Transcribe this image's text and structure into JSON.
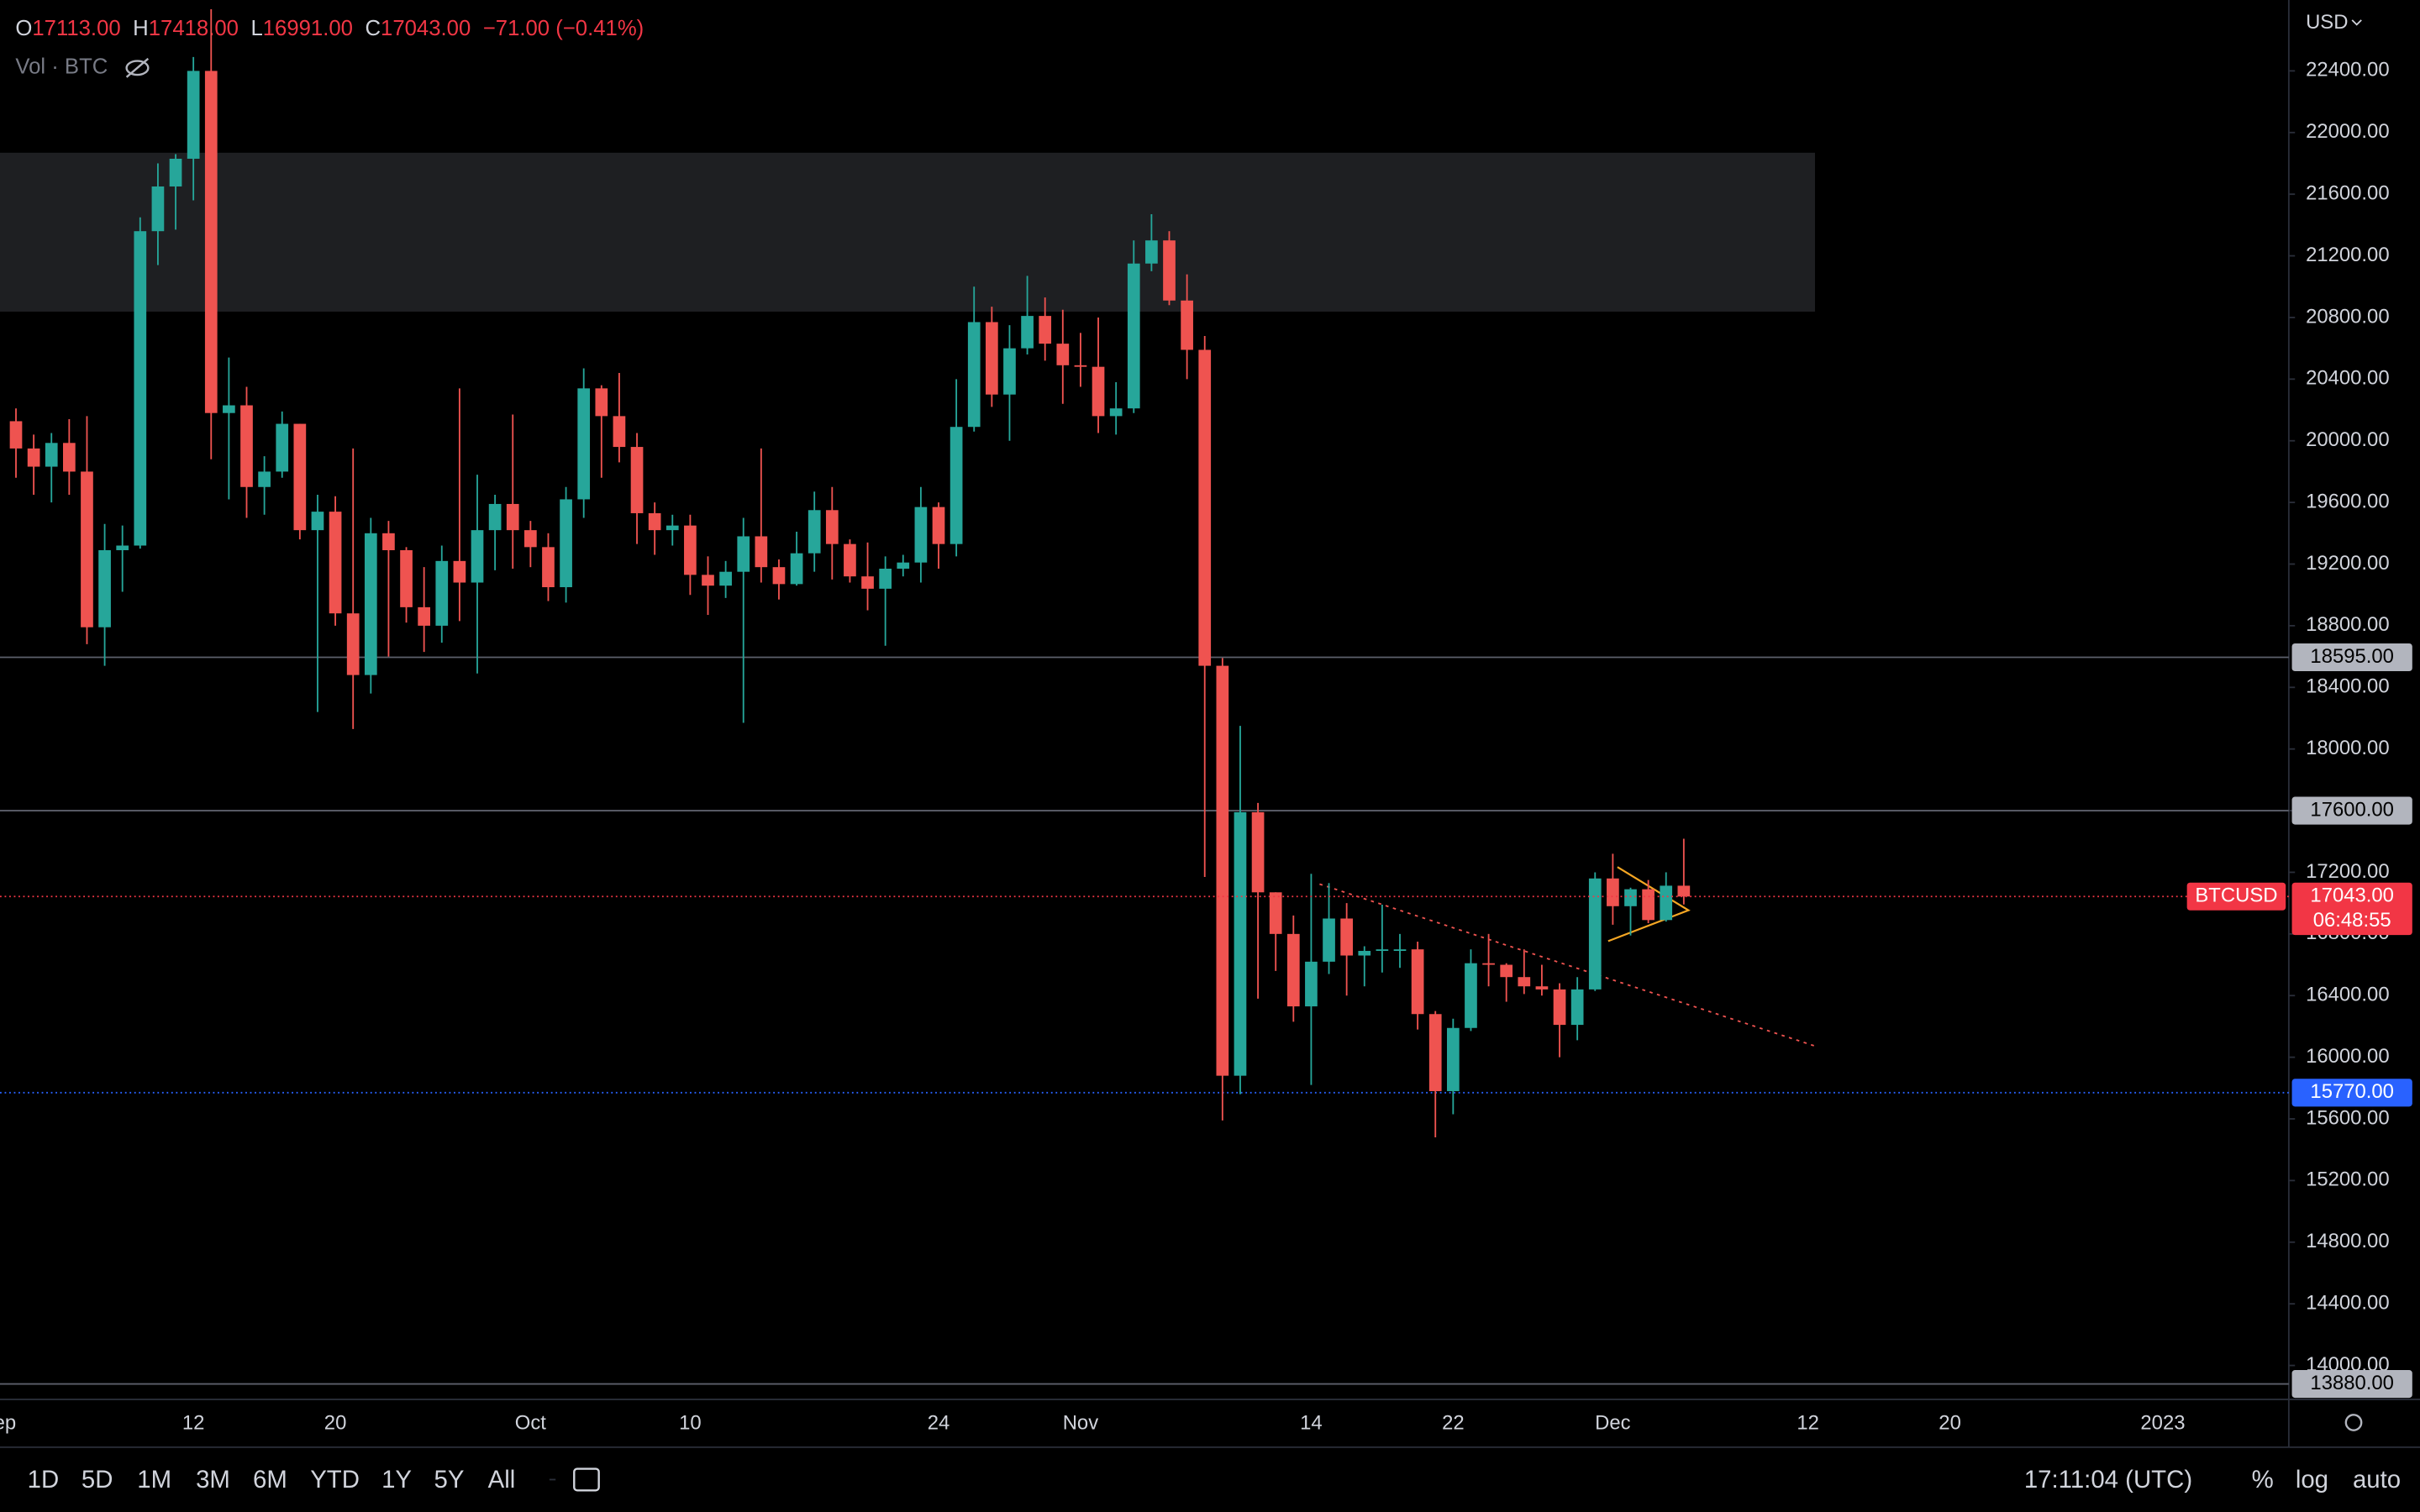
{
  "header": {
    "open_key": "O",
    "open": "17113.00",
    "high_key": "H",
    "high": "17418.00",
    "low_key": "L",
    "low": "16991.00",
    "close_key": "C",
    "close": "17043.00",
    "change": "−71.00 (−0.41%)",
    "volume": "Vol · BTC",
    "currency": "USD"
  },
  "toolbar": {
    "ranges": [
      "1D",
      "5D",
      "1M",
      "3M",
      "6M",
      "YTD",
      "1Y",
      "5Y",
      "All"
    ],
    "clock": "17:11:04 (UTC)",
    "percent": "%",
    "log": "log",
    "auto": "auto"
  },
  "chart_data": {
    "type": "candlestick",
    "up_color": "#26a69a",
    "down_color": "#ef5350",
    "log_scale": false,
    "grid": false,
    "open": [
      20127,
      19950,
      19832,
      19986,
      19800,
      18790,
      19290,
      19320,
      21360,
      21650,
      21830,
      22400,
      20180,
      20230,
      19700,
      19800,
      20110,
      19420,
      19540,
      18880,
      18480,
      19400,
      19290,
      18920,
      18800,
      19220,
      19080,
      19420,
      19590,
      19420,
      19310,
      19050,
      19620,
      20340,
      20160,
      19960,
      19530,
      19420,
      19450,
      19130,
      19060,
      19150,
      19380,
      19180,
      19070,
      19270,
      19550,
      19330,
      19120,
      19040,
      19170,
      19210,
      19570,
      19330,
      20090,
      20770,
      20300,
      20600,
      20810,
      20630,
      20490,
      20480,
      20160,
      20210,
      21150,
      21300,
      20910,
      20590,
      18540,
      15880,
      17590,
      17070,
      16800,
      16330,
      16620,
      16900,
      16660,
      16690,
      16700,
      16700,
      16280,
      15780,
      16190,
      16610,
      16600,
      16520,
      16460,
      16440,
      16210,
      16440,
      17160,
      16980,
      17090,
      16890,
      17113
    ],
    "high": [
      20210,
      20040,
      20050,
      20140,
      20160,
      19460,
      19450,
      21450,
      21800,
      21860,
      22490,
      22800,
      20540,
      20350,
      19900,
      20190,
      20110,
      19650,
      19640,
      19950,
      19500,
      19480,
      19310,
      19180,
      19320,
      20340,
      19780,
      19650,
      20170,
      19480,
      19400,
      19700,
      20470,
      20360,
      20440,
      20050,
      19600,
      19520,
      19520,
      19250,
      19220,
      19500,
      19950,
      19230,
      19410,
      19670,
      19700,
      19360,
      19340,
      19250,
      19260,
      19700,
      19600,
      20400,
      21000,
      20870,
      20750,
      21070,
      20930,
      20850,
      20700,
      20800,
      20380,
      21300,
      21470,
      21360,
      21080,
      20680,
      18590,
      18150,
      17650,
      17070,
      16920,
      17190,
      17130,
      17000,
      16720,
      16990,
      16800,
      16750,
      16300,
      16250,
      16700,
      16800,
      16610,
      16700,
      16600,
      16480,
      16520,
      17200,
      17320,
      17100,
      17150,
      17200,
      17418
    ],
    "low": [
      19760,
      19650,
      19600,
      19650,
      18680,
      18540,
      19020,
      19300,
      21140,
      21370,
      21560,
      19880,
      19620,
      19500,
      19520,
      19760,
      19360,
      18240,
      18800,
      18130,
      18360,
      18600,
      18820,
      18630,
      18690,
      18830,
      18490,
      19160,
      19170,
      19180,
      18960,
      18950,
      19500,
      19760,
      19860,
      19330,
      19260,
      19320,
      19000,
      18870,
      18980,
      18170,
      19080,
      18970,
      19060,
      19150,
      19100,
      19080,
      18900,
      18670,
      19120,
      19080,
      19170,
      19250,
      20060,
      20220,
      20000,
      20560,
      20520,
      20240,
      20350,
      20050,
      20040,
      20180,
      21100,
      20880,
      20400,
      17170,
      15590,
      15760,
      16380,
      16560,
      16230,
      15820,
      16540,
      16400,
      16460,
      16550,
      16580,
      16180,
      15480,
      15630,
      16170,
      16460,
      16360,
      16410,
      16400,
      16000,
      16110,
      16430,
      16860,
      16790,
      16870,
      16880,
      16991
    ],
    "close": [
      19950,
      19832,
      19986,
      19800,
      18790,
      19290,
      19320,
      21360,
      21650,
      21830,
      22400,
      20180,
      20230,
      19700,
      19800,
      20110,
      19420,
      19540,
      18880,
      18480,
      19400,
      19290,
      18920,
      18800,
      19220,
      19080,
      19420,
      19590,
      19420,
      19310,
      19050,
      19620,
      20340,
      20160,
      19960,
      19530,
      19420,
      19450,
      19130,
      19060,
      19150,
      19380,
      19180,
      19070,
      19270,
      19550,
      19330,
      19120,
      19040,
      19170,
      19210,
      19570,
      19330,
      20090,
      20770,
      20300,
      20600,
      20810,
      20630,
      20490,
      20480,
      20160,
      20210,
      21150,
      21300,
      20910,
      20590,
      18540,
      15880,
      17590,
      17070,
      16800,
      16330,
      16620,
      16900,
      16660,
      16690,
      16700,
      16700,
      16280,
      15780,
      16190,
      16610,
      16600,
      16520,
      16460,
      16440,
      16210,
      16440,
      17160,
      16980,
      17090,
      16890,
      17113,
      17043
    ],
    "xlim": [
      -0.9,
      128.1
    ],
    "xticks": [
      {
        "value": -1,
        "label": "Sep"
      },
      {
        "value": 10,
        "label": "12"
      },
      {
        "value": 18,
        "label": "20"
      },
      {
        "value": 29,
        "label": "Oct"
      },
      {
        "value": 38,
        "label": "10"
      },
      {
        "value": 52,
        "label": "24"
      },
      {
        "value": 60,
        "label": "Nov"
      },
      {
        "value": 73,
        "label": "14"
      },
      {
        "value": 81,
        "label": "22"
      },
      {
        "value": 90,
        "label": "Dec"
      },
      {
        "value": 101,
        "label": "12"
      },
      {
        "value": 109,
        "label": "20"
      },
      {
        "value": 121,
        "label": "2023"
      }
    ],
    "ylim": [
      13780,
      22860
    ],
    "yticks": [
      {
        "value": 14000,
        "label": "14000.00"
      },
      {
        "value": 14400,
        "label": "14400.00"
      },
      {
        "value": 14800,
        "label": "14800.00"
      },
      {
        "value": 15200,
        "label": "15200.00"
      },
      {
        "value": 15600,
        "label": "15600.00"
      },
      {
        "value": 16000,
        "label": "16000.00"
      },
      {
        "value": 16400,
        "label": "16400.00"
      },
      {
        "value": 16800,
        "label": "16800.00"
      },
      {
        "value": 17200,
        "label": "17200.00"
      },
      {
        "value": 17600,
        "label": "17600.00"
      },
      {
        "value": 18000,
        "label": "18000.00"
      },
      {
        "value": 18400,
        "label": "18400.00"
      },
      {
        "value": 18800,
        "label": "18800.00"
      },
      {
        "value": 19200,
        "label": "19200.00"
      },
      {
        "value": 19600,
        "label": "19600.00"
      },
      {
        "value": 20000,
        "label": "20000.00"
      },
      {
        "value": 20400,
        "label": "20400.00"
      },
      {
        "value": 20800,
        "label": "20800.00"
      },
      {
        "value": 21200,
        "label": "21200.00"
      },
      {
        "value": 21600,
        "label": "21600.00"
      },
      {
        "value": 22000,
        "label": "22000.00"
      },
      {
        "value": 22400,
        "label": "22400.00"
      }
    ],
    "levels": [
      {
        "value": 18595,
        "label": "18595.00",
        "color": "#b2b5be",
        "text_color": "#000000",
        "style": "solid"
      },
      {
        "value": 17600,
        "label": "17600.00",
        "color": "#b2b5be",
        "text_color": "#000000",
        "style": "solid"
      },
      {
        "value": 15770,
        "label": "15770.00",
        "color": "#2962ff",
        "text_color": "#ffffff",
        "style": "dotted"
      },
      {
        "value": 13880,
        "label": "13880.00",
        "color": "#b2b5be",
        "text_color": "#000000",
        "style": "solid"
      }
    ],
    "last": {
      "value": 17043,
      "label": "17043.00",
      "countdown": "06:48:55",
      "symbol": "BTCUSD",
      "color": "#f23645"
    }
  }
}
